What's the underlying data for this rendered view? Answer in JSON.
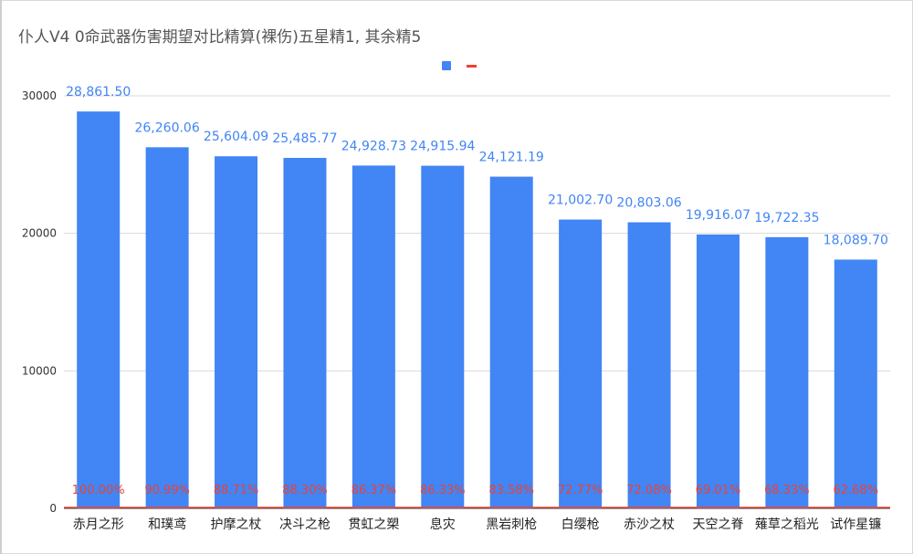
{
  "chart_data": {
    "type": "bar",
    "title": "仆人V4 0命武器伤害期望对比精算(裸伤)五星精1, 其余精5",
    "categories": [
      "赤月之形",
      "和璞鸢",
      "护摩之杖",
      "决斗之枪",
      "贯虹之槊",
      "息灾",
      "黑岩刺枪",
      "白缨枪",
      "赤沙之杖",
      "天空之脊",
      "薙草之稻光",
      "试作星镰"
    ],
    "series": [
      {
        "name": "",
        "color": "#4285f4",
        "values": [
          28861.5,
          26260.06,
          25604.09,
          25485.77,
          24928.73,
          24915.94,
          24121.19,
          21002.7,
          20803.06,
          19916.07,
          19722.35,
          18089.7
        ],
        "labels": [
          "28,861.50",
          "26,260.06",
          "25,604.09",
          "25,485.77",
          "24,928.73",
          "24,915.94",
          "24,121.19",
          "21,002.70",
          "20,803.06",
          "19,916.07",
          "19,722.35",
          "18,089.70"
        ]
      },
      {
        "name": "",
        "color": "#ea4335",
        "type": "line",
        "values": [
          100.0,
          90.99,
          88.71,
          88.3,
          86.37,
          86.33,
          83.58,
          72.77,
          72.08,
          69.01,
          68.33,
          62.68
        ],
        "labels": [
          "100.00%",
          "90.99%",
          "88.71%",
          "88.30%",
          "86.37%",
          "86.33%",
          "83.58%",
          "72.77%",
          "72.08%",
          "69.01%",
          "68.33%",
          "62.68%"
        ]
      }
    ],
    "ylim": [
      0,
      30000
    ],
    "yticks": [
      0,
      10000,
      20000,
      30000
    ],
    "xlabel": "",
    "ylabel": "",
    "grid": true,
    "legend": "top-center"
  }
}
